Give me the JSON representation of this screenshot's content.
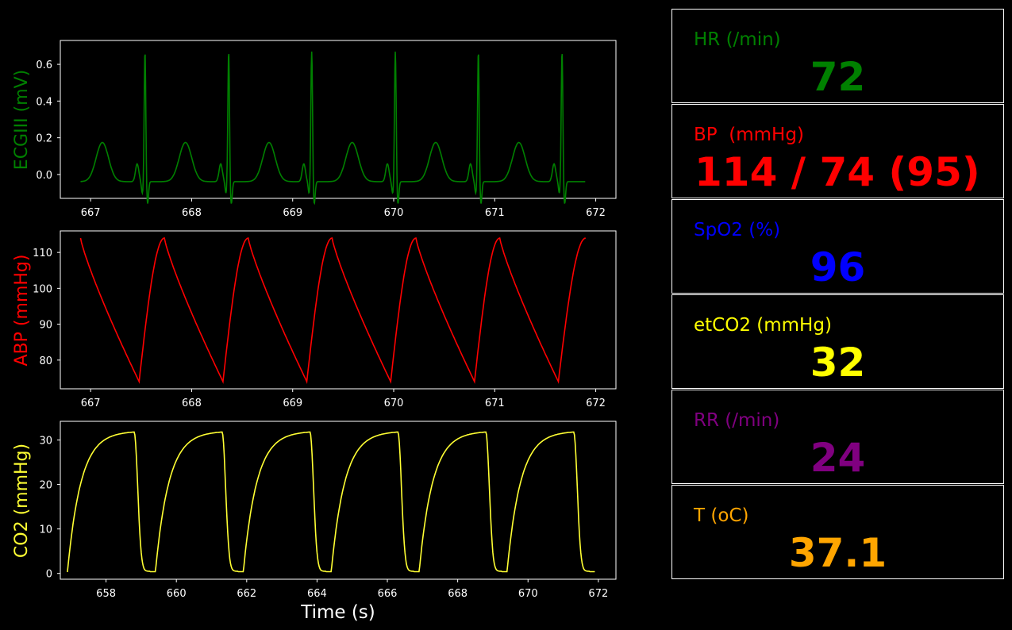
{
  "chart_data": [
    {
      "type": "line",
      "ylabel": "ECGIII (mV)",
      "color": "#008000",
      "xlim": [
        666.7,
        672.2
      ],
      "ylim": [
        -0.13,
        0.73
      ],
      "xticks": [
        667,
        668,
        669,
        670,
        671,
        672
      ],
      "yticks": [
        0.0,
        0.2,
        0.4,
        0.6
      ],
      "ytick_labels": [
        "0.0",
        "0.2",
        "0.4",
        "0.6"
      ],
      "beats": [
        666.87,
        667.69,
        668.52,
        669.34,
        670.17,
        670.99,
        671.82
      ],
      "peak_value": 0.67,
      "x_range": [
        666.9,
        671.9
      ]
    },
    {
      "type": "line",
      "ylabel": "ABP (mmHg)",
      "color": "#ff0000",
      "xlim": [
        666.7,
        672.2
      ],
      "ylim": [
        72,
        116
      ],
      "xticks": [
        667,
        668,
        669,
        670,
        671,
        672
      ],
      "yticks": [
        80,
        90,
        100,
        110
      ],
      "ytick_labels": [
        "80",
        "90",
        "100",
        "110"
      ],
      "systolic": 114,
      "diastolic": 74,
      "peaks": [
        666.9,
        667.73,
        668.56,
        669.39,
        670.22,
        671.05,
        671.9
      ],
      "troughs": [
        667.48,
        668.31,
        669.14,
        669.97,
        670.8,
        671.63
      ]
    },
    {
      "type": "line",
      "ylabel": "CO2 (mmHg)",
      "xlabel": "Time (s)",
      "color": "#ffff33",
      "xlim": [
        656.7,
        672.5
      ],
      "ylim": [
        -1.3,
        34.2
      ],
      "xticks": [
        658,
        660,
        662,
        664,
        666,
        668,
        670,
        672
      ],
      "yticks": [
        0,
        10,
        20,
        30
      ],
      "ytick_labels": [
        "0",
        "10",
        "20",
        "30"
      ],
      "breath_starts": [
        656.9,
        659.4,
        661.9,
        664.4,
        666.9,
        669.4
      ],
      "plateau_value": 32.4,
      "x_range": [
        656.9,
        671.9
      ]
    }
  ],
  "vitals": [
    {
      "label": "HR (/min)",
      "value": "72",
      "color": "#008000"
    },
    {
      "label": "BP  (mmHg)",
      "value": "114 / 74 (95)",
      "color": "#ff0000"
    },
    {
      "label": "SpO2 (%)",
      "value": "96",
      "color": "#0000ff"
    },
    {
      "label": "etCO2 (mmHg)",
      "value": "32",
      "color": "#ffff00"
    },
    {
      "label": "RR (/min)",
      "value": "24",
      "color": "#800080"
    },
    {
      "label": "T (oC)",
      "value": "37.1",
      "color": "#ffa500"
    }
  ]
}
